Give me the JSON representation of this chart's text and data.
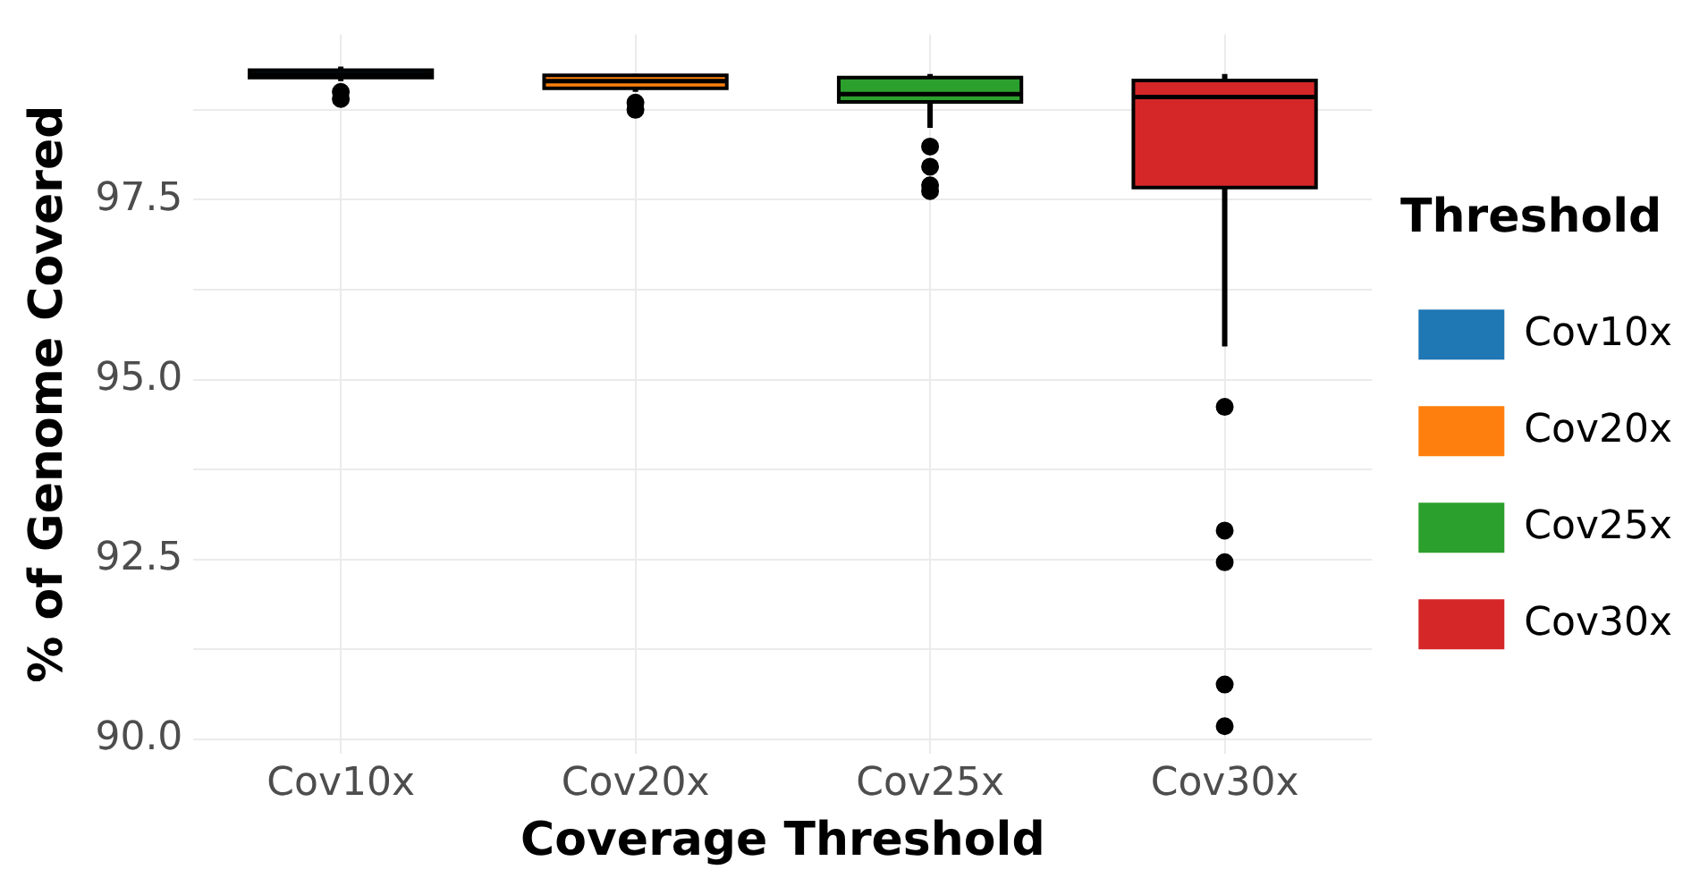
{
  "chart_data": {
    "type": "box",
    "xlabel": "Coverage Threshold",
    "ylabel": "% of Genome Covered",
    "legend_title": "Threshold",
    "legend": "right",
    "grid": true,
    "categories": [
      "Cov10x",
      "Cov20x",
      "Cov25x",
      "Cov30x"
    ],
    "series": [
      {
        "name": "Cov10x",
        "color": "#1f77b4",
        "boxes": [
          {
            "low": 99.15,
            "q1": 99.2,
            "median": 99.25,
            "q3": 99.3,
            "high": 99.35,
            "outliers": [
              99.0,
              98.9
            ]
          },
          null,
          null,
          null
        ]
      },
      {
        "name": "Cov20x",
        "color": "#ff7f0e",
        "boxes": [
          null,
          {
            "low": 99.0,
            "q1": 99.05,
            "median": 99.15,
            "q3": 99.23,
            "high": 99.25,
            "outliers": [
              98.85,
              98.75
            ]
          },
          null,
          null
        ]
      },
      {
        "name": "Cov25x",
        "color": "#2ca02c",
        "boxes": [
          null,
          null,
          {
            "low": 98.5,
            "q1": 98.86,
            "median": 98.97,
            "q3": 99.2,
            "high": 99.25,
            "outliers": [
              98.24,
              97.96,
              97.7,
              97.62
            ]
          },
          null
        ]
      },
      {
        "name": "Cov30x",
        "color": "#d62728",
        "boxes": [
          null,
          null,
          null,
          {
            "low": 95.46,
            "q1": 97.67,
            "median": 98.93,
            "q3": 99.16,
            "high": 99.25,
            "outliers": [
              94.62,
              92.9,
              92.46,
              90.76,
              90.18
            ]
          }
        ]
      }
    ],
    "ylim": [
      89.8,
      99.8
    ],
    "yticks": [
      {
        "value": 90,
        "label": "90.0"
      },
      {
        "value": 91.25,
        "label": null
      },
      {
        "value": 92.5,
        "label": "92.5"
      },
      {
        "value": 93.75,
        "label": null
      },
      {
        "value": 95,
        "label": "95.0"
      },
      {
        "value": 96.25,
        "label": null
      },
      {
        "value": 97.5,
        "label": "97.5"
      },
      {
        "value": 98.75,
        "label": null
      }
    ]
  }
}
